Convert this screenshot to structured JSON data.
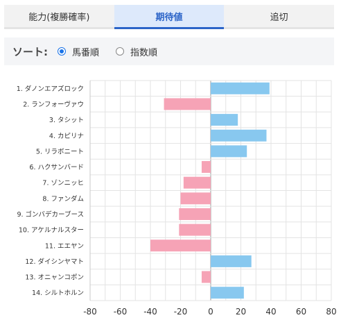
{
  "tabs": [
    {
      "label": "能力(複勝確率)",
      "active": false
    },
    {
      "label": "期待値",
      "active": true
    },
    {
      "label": "追切",
      "active": false
    }
  ],
  "sort": {
    "label": "ソート:",
    "options": [
      {
        "label": "馬番順",
        "checked": true
      },
      {
        "label": "指数順",
        "checked": false
      }
    ]
  },
  "colors": {
    "positive": "#88c8ef",
    "negative": "#f6a3b6",
    "accent": "#2b64c8"
  },
  "chart_data": {
    "type": "bar",
    "orientation": "horizontal",
    "categories": [
      "1. ダノンエアズロック",
      "2. ランフォーヴァウ",
      "3. タシット",
      "4. カピリナ",
      "5. リラボニート",
      "6. ハクサンバード",
      "7. ゾンニッヒ",
      "8. ファンダム",
      "9. ゴンバデカーブース",
      "10. アケルナルスター",
      "11. エエヤン",
      "12. ダイシンヤマト",
      "13. オニャンコポン",
      "14. シルトホルン"
    ],
    "values": [
      39,
      -31,
      18,
      37,
      24,
      -6,
      -18,
      -20,
      -21,
      -21,
      -40,
      27,
      -6,
      22
    ],
    "xlim": [
      -80,
      80
    ],
    "xticks": [
      "-80",
      "-60",
      "-40",
      "-20",
      "0",
      "20",
      "40",
      "60",
      "80"
    ],
    "grid": true
  }
}
